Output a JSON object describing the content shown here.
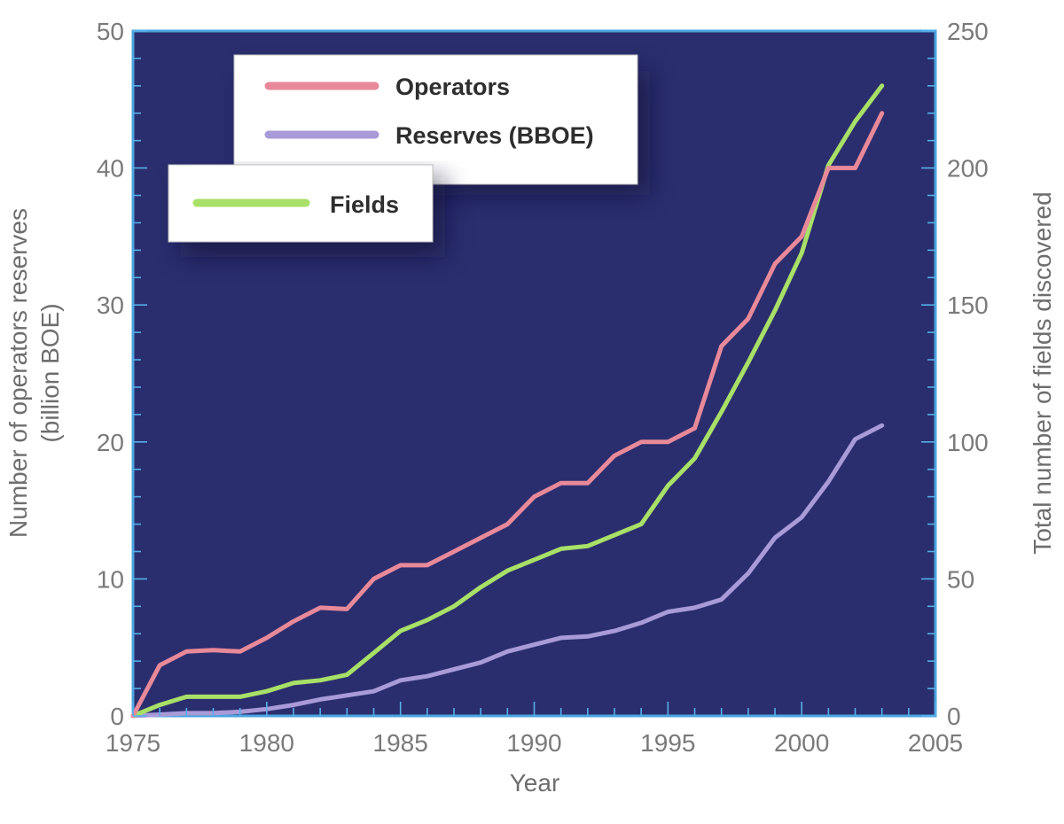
{
  "chart_data": {
    "type": "line",
    "title": "",
    "xlabel": "Year",
    "ylabel_left_line1": "Number of operators reserves",
    "ylabel_left_line2": "(billion BOE)",
    "ylabel_right": "Total number of fields discovered",
    "xlim": [
      1975,
      2005
    ],
    "ylim_left": [
      0,
      50
    ],
    "ylim_right": [
      0,
      250
    ],
    "x_ticks": [
      "1975",
      "1980",
      "1985",
      "1990",
      "1995",
      "2000",
      "2005"
    ],
    "y_ticks_left": [
      "0",
      "10",
      "20",
      "30",
      "40",
      "50"
    ],
    "y_ticks_right": [
      "0",
      "50",
      "100",
      "150",
      "200",
      "250"
    ],
    "grid": false,
    "background_color": "#2b2e6e",
    "x": [
      1975,
      1976,
      1977,
      1978,
      1979,
      1980,
      1981,
      1982,
      1983,
      1984,
      1985,
      1986,
      1987,
      1988,
      1989,
      1990,
      1991,
      1992,
      1993,
      1994,
      1995,
      1996,
      1997,
      1998,
      1999,
      2000,
      2001,
      2002,
      2003
    ],
    "series": [
      {
        "name": "Operators",
        "axis": "left",
        "color": "#e8899a",
        "values": [
          0,
          3.7,
          4.7,
          4.8,
          4.7,
          5.7,
          6.9,
          7.9,
          7.8,
          10.0,
          11.0,
          11.0,
          12.0,
          13.0,
          14.0,
          16.0,
          17.0,
          17.0,
          19.0,
          20.0,
          20.0,
          21.0,
          27.0,
          29.0,
          33.0,
          35.0,
          40.0,
          40.0,
          44.0
        ]
      },
      {
        "name": "Reserves (BBOE)",
        "axis": "left",
        "color": "#a99ad8",
        "values": [
          0,
          0.1,
          0.2,
          0.2,
          0.3,
          0.5,
          0.8,
          1.2,
          1.5,
          1.8,
          2.6,
          2.9,
          3.4,
          3.9,
          4.7,
          5.2,
          5.7,
          5.8,
          6.2,
          6.8,
          7.6,
          7.9,
          8.5,
          10.4,
          13.0,
          14.5,
          17.1,
          20.2,
          21.2
        ]
      },
      {
        "name": "Fields",
        "axis": "right",
        "color": "#a8e068",
        "values": [
          0,
          4,
          7,
          7,
          7,
          9,
          12,
          13,
          15,
          23,
          31,
          35,
          40,
          47,
          53,
          57,
          61,
          62,
          66,
          70,
          84,
          94,
          111,
          129,
          148,
          169,
          201,
          217,
          230
        ]
      }
    ],
    "legend_box_1": [
      "Operators",
      "Reserves (BBOE)"
    ],
    "legend_box_2": [
      "Fields"
    ]
  }
}
